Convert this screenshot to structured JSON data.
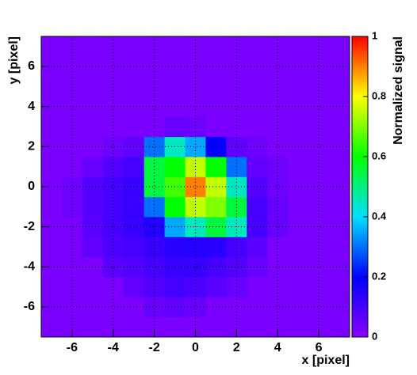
{
  "chart_data": {
    "type": "heatmap",
    "x_label": "x [pixel]",
    "y_label": "y [pixel]",
    "z_label": "Normalized signal",
    "xlim": [
      -7.5,
      7.5
    ],
    "ylim": [
      -7.5,
      7.5
    ],
    "zlim": [
      0,
      1
    ],
    "xticks": [
      -6,
      -4,
      -2,
      0,
      2,
      4,
      6
    ],
    "yticks": [
      -6,
      -4,
      -2,
      0,
      2,
      4,
      6
    ],
    "zticks": [
      0,
      0.2,
      0.4,
      0.6,
      0.8,
      1
    ],
    "grid": true,
    "colorscale": [
      "#8a00ff",
      "#0000ff",
      "#00e0ff",
      "#00ff00",
      "#ffff00",
      "#ff0000"
    ],
    "xbins": [
      -7.5,
      -6.5,
      -5.5,
      -4.5,
      -3.5,
      -2.5,
      -1.5,
      -0.5,
      0.5,
      1.5,
      2.5,
      3.5,
      4.5,
      5.5,
      6.5,
      7.5
    ],
    "ybins": [
      -7.5,
      -6.5,
      -5.5,
      -4.5,
      -3.5,
      -2.5,
      -1.5,
      -0.5,
      0.5,
      1.5,
      2.5,
      3.5,
      4.5,
      5.5,
      6.5,
      7.5
    ],
    "z": [
      [
        0.02,
        0.02,
        0.02,
        0.02,
        0.02,
        0.02,
        0.02,
        0.02,
        0.02,
        0.02,
        0.02,
        0.02,
        0.02,
        0.02,
        0.02
      ],
      [
        0.02,
        0.02,
        0.02,
        0.02,
        0.02,
        0.05,
        0.06,
        0.05,
        0.02,
        0.02,
        0.02,
        0.02,
        0.02,
        0.02,
        0.02
      ],
      [
        0.02,
        0.02,
        0.02,
        0.02,
        0.06,
        0.08,
        0.1,
        0.09,
        0.07,
        0.05,
        0.02,
        0.02,
        0.02,
        0.02,
        0.02
      ],
      [
        0.02,
        0.02,
        0.02,
        0.07,
        0.08,
        0.1,
        0.12,
        0.12,
        0.1,
        0.08,
        0.05,
        0.02,
        0.02,
        0.02,
        0.02
      ],
      [
        0.02,
        0.02,
        0.06,
        0.09,
        0.1,
        0.12,
        0.14,
        0.15,
        0.14,
        0.1,
        0.07,
        0.02,
        0.02,
        0.02,
        0.02
      ],
      [
        0.02,
        0.02,
        0.07,
        0.1,
        0.12,
        0.15,
        0.35,
        0.45,
        0.55,
        0.45,
        0.1,
        0.05,
        0.02,
        0.02,
        0.02
      ],
      [
        0.02,
        0.04,
        0.08,
        0.1,
        0.12,
        0.3,
        0.6,
        0.75,
        0.7,
        0.55,
        0.1,
        0.05,
        0.02,
        0.02,
        0.02
      ],
      [
        0.02,
        0.04,
        0.08,
        0.1,
        0.12,
        0.55,
        0.65,
        0.9,
        0.75,
        0.45,
        0.08,
        0.04,
        0.02,
        0.02,
        0.02
      ],
      [
        0.02,
        0.02,
        0.05,
        0.08,
        0.1,
        0.55,
        0.6,
        0.75,
        0.6,
        0.3,
        0.06,
        0.04,
        0.02,
        0.02,
        0.02
      ],
      [
        0.02,
        0.02,
        0.02,
        0.04,
        0.06,
        0.3,
        0.45,
        0.35,
        0.2,
        0.06,
        0.04,
        0.02,
        0.02,
        0.02,
        0.02
      ],
      [
        0.02,
        0.02,
        0.02,
        0.02,
        0.02,
        0.02,
        0.05,
        0.04,
        0.02,
        0.02,
        0.02,
        0.02,
        0.02,
        0.02,
        0.02
      ],
      [
        0.02,
        0.02,
        0.02,
        0.02,
        0.02,
        0.02,
        0.02,
        0.02,
        0.02,
        0.02,
        0.02,
        0.02,
        0.02,
        0.02,
        0.02
      ],
      [
        0.02,
        0.02,
        0.02,
        0.02,
        0.02,
        0.02,
        0.02,
        0.02,
        0.02,
        0.02,
        0.02,
        0.02,
        0.02,
        0.02,
        0.02
      ],
      [
        0.02,
        0.02,
        0.02,
        0.02,
        0.02,
        0.02,
        0.02,
        0.02,
        0.02,
        0.02,
        0.02,
        0.02,
        0.02,
        0.02,
        0.02
      ],
      [
        0.02,
        0.02,
        0.02,
        0.02,
        0.02,
        0.02,
        0.02,
        0.02,
        0.02,
        0.02,
        0.02,
        0.02,
        0.02,
        0.02,
        0.02
      ]
    ]
  }
}
